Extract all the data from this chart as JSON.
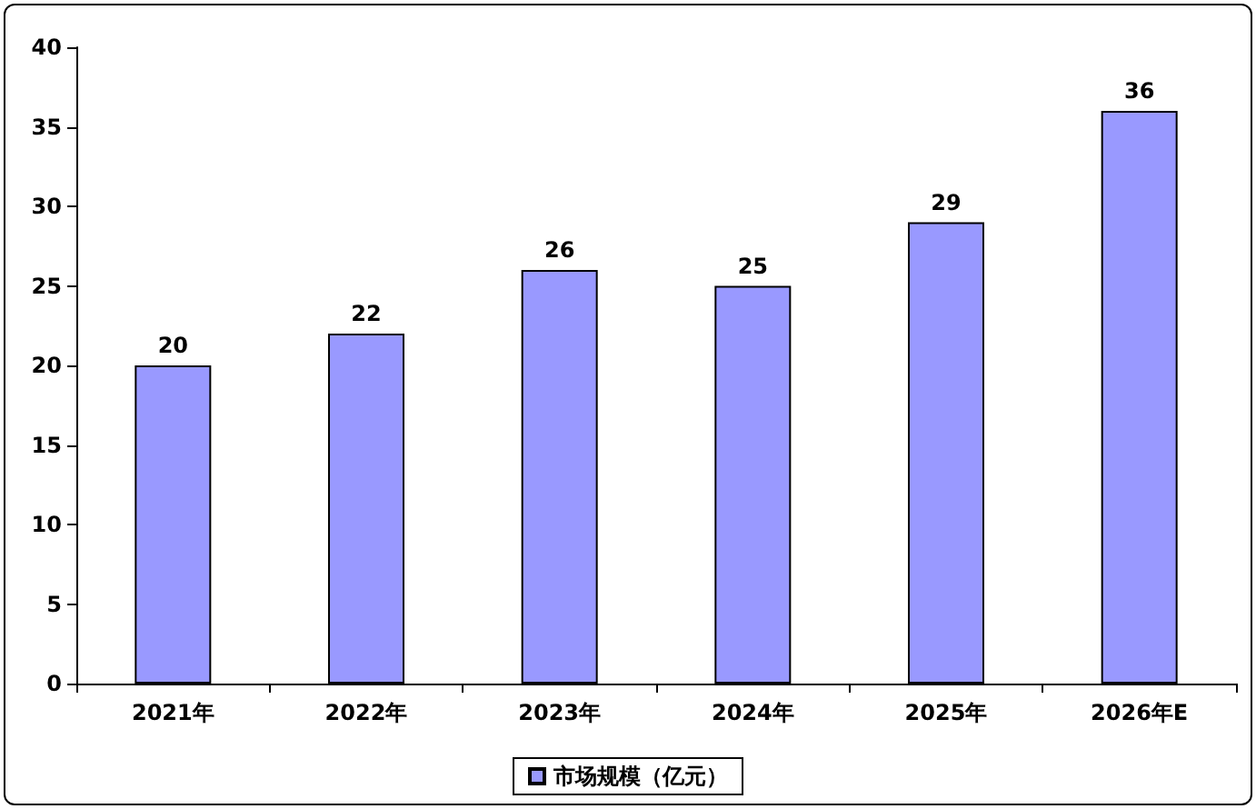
{
  "chart_data": {
    "type": "bar",
    "categories": [
      "2021年",
      "2022年",
      "2023年",
      "2024年",
      "2025年",
      "2026年E"
    ],
    "series": [
      {
        "name": "市场规模（亿元）",
        "color": "#9999ff",
        "values": [
          20,
          22,
          26,
          25,
          29,
          36
        ]
      }
    ],
    "ylim": [
      0,
      40
    ],
    "yticks": [
      0,
      5,
      10,
      15,
      20,
      25,
      30,
      35,
      40
    ],
    "data_labels": true,
    "grid": false,
    "legend": "bottom"
  }
}
